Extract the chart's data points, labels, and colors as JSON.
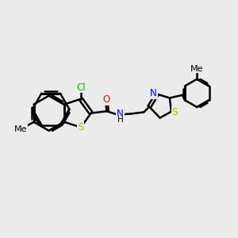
{
  "background_color": "#ebebeb",
  "bond_color": "#000000",
  "bond_width": 1.8,
  "atom_colors": {
    "S": "#b8b800",
    "N": "#0000ff",
    "O": "#ff0000",
    "Cl": "#00bb00",
    "C": "#000000",
    "H": "#000000"
  },
  "font_size": 8.5,
  "fig_width": 3.0,
  "fig_height": 3.0,
  "dpi": 100,
  "xlim": [
    0,
    12
  ],
  "ylim": [
    0,
    10
  ]
}
